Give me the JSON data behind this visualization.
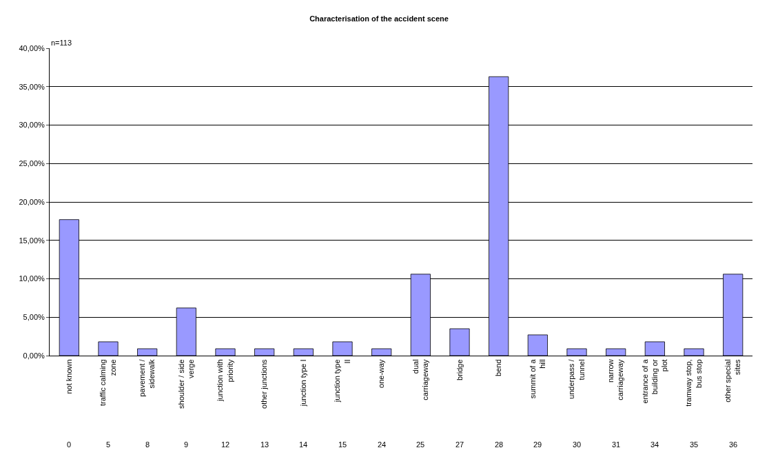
{
  "chart_data": {
    "type": "bar",
    "title": "Characterisation of the accident scene",
    "categories": [
      "not known",
      "traffic calming zone",
      "pavement / sidewalk",
      "shoulder / side verge",
      "junction with priority",
      "other junctions",
      "junction type I",
      "junction type II",
      "one-way",
      "dual carriageway",
      "bridge",
      "bend",
      "summit of a hill",
      "underpass / tunnel",
      "narrow carriageway",
      "entrance of a building or plot",
      "tramway stop, bus stop",
      "other special sites"
    ],
    "values": [
      17.7,
      1.8,
      0.9,
      6.2,
      0.9,
      0.9,
      0.9,
      1.8,
      0.9,
      10.6,
      3.5,
      36.3,
      2.7,
      0.9,
      0.9,
      1.8,
      0.9,
      10.6
    ],
    "color": "#9999ff",
    "ylim": [
      0,
      40
    ],
    "yticks": [
      {
        "value": 0,
        "label": "0,00%"
      },
      {
        "value": 5,
        "label": "5,00%"
      },
      {
        "value": 10,
        "label": "10,00%"
      },
      {
        "value": 15,
        "label": "15,00%"
      },
      {
        "value": 20,
        "label": "20,00%"
      },
      {
        "value": 25,
        "label": "25,00%"
      },
      {
        "value": 30,
        "label": "30,00%"
      },
      {
        "value": 35,
        "label": "35,00%"
      },
      {
        "value": 40,
        "label": "40,00%"
      }
    ],
    "grid": "y",
    "annotations": [
      "n=113",
      "0",
      "5",
      "8",
      "9",
      "12",
      "13",
      "14",
      "15",
      "24",
      "25",
      "27",
      "28",
      "29",
      "30",
      "31",
      "34",
      "35",
      "36"
    ]
  }
}
